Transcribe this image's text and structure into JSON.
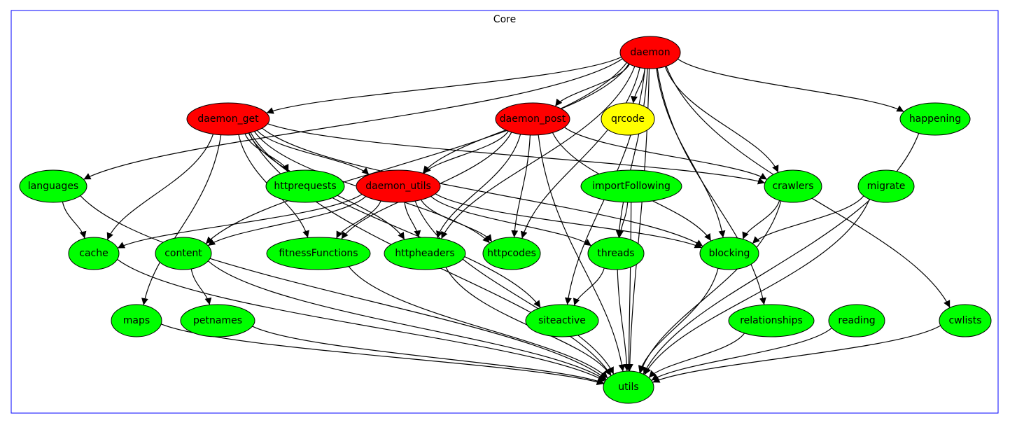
{
  "cluster": {
    "label": "Core",
    "border_color": "#0000ff"
  },
  "colors": {
    "red": "#ff0000",
    "yellow": "#ffff00",
    "green": "#00ff00"
  },
  "nodes": [
    {
      "id": "daemon",
      "label": "daemon",
      "fill": "#ff0000"
    },
    {
      "id": "daemon_get",
      "label": "daemon_get",
      "fill": "#ff0000"
    },
    {
      "id": "daemon_post",
      "label": "daemon_post",
      "fill": "#ff0000"
    },
    {
      "id": "qrcode",
      "label": "qrcode",
      "fill": "#ffff00"
    },
    {
      "id": "happening",
      "label": "happening",
      "fill": "#00ff00"
    },
    {
      "id": "languages",
      "label": "languages",
      "fill": "#00ff00"
    },
    {
      "id": "httprequests",
      "label": "httprequests",
      "fill": "#00ff00"
    },
    {
      "id": "daemon_utils",
      "label": "daemon_utils",
      "fill": "#ff0000"
    },
    {
      "id": "importFollowing",
      "label": "importFollowing",
      "fill": "#00ff00"
    },
    {
      "id": "crawlers",
      "label": "crawlers",
      "fill": "#00ff00"
    },
    {
      "id": "migrate",
      "label": "migrate",
      "fill": "#00ff00"
    },
    {
      "id": "cache",
      "label": "cache",
      "fill": "#00ff00"
    },
    {
      "id": "content",
      "label": "content",
      "fill": "#00ff00"
    },
    {
      "id": "fitnessFunctions",
      "label": "fitnessFunctions",
      "fill": "#00ff00"
    },
    {
      "id": "httpheaders",
      "label": "httpheaders",
      "fill": "#00ff00"
    },
    {
      "id": "httpcodes",
      "label": "httpcodes",
      "fill": "#00ff00"
    },
    {
      "id": "threads",
      "label": "threads",
      "fill": "#00ff00"
    },
    {
      "id": "blocking",
      "label": "blocking",
      "fill": "#00ff00"
    },
    {
      "id": "maps",
      "label": "maps",
      "fill": "#00ff00"
    },
    {
      "id": "petnames",
      "label": "petnames",
      "fill": "#00ff00"
    },
    {
      "id": "siteactive",
      "label": "siteactive",
      "fill": "#00ff00"
    },
    {
      "id": "relationships",
      "label": "relationships",
      "fill": "#00ff00"
    },
    {
      "id": "reading",
      "label": "reading",
      "fill": "#00ff00"
    },
    {
      "id": "cwlists",
      "label": "cwlists",
      "fill": "#00ff00"
    },
    {
      "id": "utils",
      "label": "utils",
      "fill": "#00ff00"
    }
  ],
  "edges": [
    [
      "daemon",
      "daemon_get"
    ],
    [
      "daemon",
      "daemon_post"
    ],
    [
      "daemon",
      "qrcode"
    ],
    [
      "daemon",
      "happening"
    ],
    [
      "daemon",
      "languages"
    ],
    [
      "daemon",
      "content"
    ],
    [
      "daemon",
      "daemon_utils"
    ],
    [
      "daemon",
      "httpheaders"
    ],
    [
      "daemon",
      "httpcodes"
    ],
    [
      "daemon",
      "threads"
    ],
    [
      "daemon",
      "siteactive"
    ],
    [
      "daemon",
      "crawlers"
    ],
    [
      "daemon",
      "blocking"
    ],
    [
      "daemon",
      "relationships"
    ],
    [
      "daemon",
      "cwlists"
    ],
    [
      "daemon",
      "utils"
    ],
    [
      "daemon_get",
      "daemon_utils"
    ],
    [
      "daemon_get",
      "httprequests"
    ],
    [
      "daemon_get",
      "cache"
    ],
    [
      "daemon_get",
      "maps"
    ],
    [
      "daemon_get",
      "fitnessFunctions"
    ],
    [
      "daemon_get",
      "httpheaders"
    ],
    [
      "daemon_get",
      "httpcodes"
    ],
    [
      "daemon_get",
      "siteactive"
    ],
    [
      "daemon_get",
      "utils"
    ],
    [
      "daemon_get",
      "crawlers"
    ],
    [
      "daemon_get",
      "blocking"
    ],
    [
      "daemon_post",
      "daemon_utils"
    ],
    [
      "daemon_post",
      "fitnessFunctions"
    ],
    [
      "daemon_post",
      "httpheaders"
    ],
    [
      "daemon_post",
      "httpcodes"
    ],
    [
      "daemon_post",
      "crawlers"
    ],
    [
      "daemon_post",
      "blocking"
    ],
    [
      "daemon_post",
      "utils"
    ],
    [
      "daemon_utils",
      "cache"
    ],
    [
      "daemon_utils",
      "content"
    ],
    [
      "daemon_utils",
      "fitnessFunctions"
    ],
    [
      "daemon_utils",
      "httpheaders"
    ],
    [
      "daemon_utils",
      "httpcodes"
    ],
    [
      "daemon_utils",
      "threads"
    ],
    [
      "daemon_utils",
      "blocking"
    ],
    [
      "daemon_utils",
      "utils"
    ],
    [
      "languages",
      "cache"
    ],
    [
      "languages",
      "utils"
    ],
    [
      "cache",
      "utils"
    ],
    [
      "content",
      "petnames"
    ],
    [
      "content",
      "utils"
    ],
    [
      "fitnessFunctions",
      "utils"
    ],
    [
      "httpheaders",
      "utils"
    ],
    [
      "threads",
      "siteactive"
    ],
    [
      "threads",
      "utils"
    ],
    [
      "importFollowing",
      "threads"
    ],
    [
      "importFollowing",
      "utils"
    ],
    [
      "blocking",
      "utils"
    ],
    [
      "crawlers",
      "blocking"
    ],
    [
      "crawlers",
      "utils"
    ],
    [
      "migrate",
      "blocking"
    ],
    [
      "migrate",
      "utils"
    ],
    [
      "maps",
      "utils"
    ],
    [
      "petnames",
      "utils"
    ],
    [
      "relationships",
      "utils"
    ],
    [
      "reading",
      "utils"
    ],
    [
      "cwlists",
      "utils"
    ],
    [
      "happening",
      "utils"
    ]
  ]
}
